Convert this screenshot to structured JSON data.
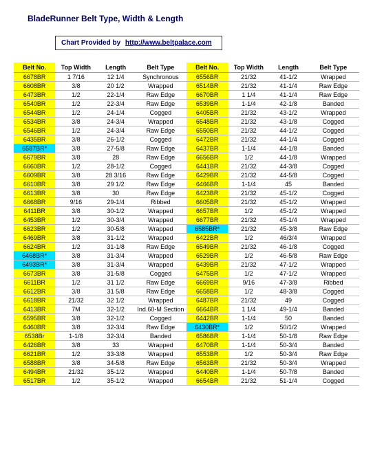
{
  "title": "BladeRunner Belt Type, Width & Length",
  "provided_label": "Chart Provided by",
  "provided_url": "http://www.beltpalace.com",
  "headers": {
    "beltno": "Belt No.",
    "topwidth": "Top Width",
    "length": "Length",
    "belttype": "Belt Type"
  },
  "rows": [
    [
      {
        "n": "6678BR",
        "w": "1  7/16",
        "l": "12 1/4",
        "t": "Synchronous"
      },
      {
        "n": "6556BR",
        "w": "21/32",
        "l": "41-1/2",
        "t": "Wrapped"
      }
    ],
    [
      {
        "n": "6608BR",
        "w": "3/8",
        "l": "20 1/2",
        "t": "Wrapped"
      },
      {
        "n": "6514BR",
        "w": "21/32",
        "l": "41-1/4",
        "t": "Raw Edge"
      }
    ],
    [
      {
        "n": "6473BR",
        "w": "1/2",
        "l": "22-1/4",
        "t": "Raw Edge"
      },
      {
        "n": "6670BR",
        "w": "1  1/4",
        "l": "41-1/4",
        "t": "Raw Edge"
      }
    ],
    [
      {
        "n": "6540BR",
        "w": "1/2",
        "l": "22-3/4",
        "t": "Raw Edge"
      },
      {
        "n": "6539BR",
        "w": "1-1/4",
        "l": "42-1/8",
        "t": "Banded"
      }
    ],
    [
      {
        "n": "6544BR",
        "w": "1/2",
        "l": "24-1/4",
        "t": "Cogged"
      },
      {
        "n": "6405BR",
        "w": "21/32",
        "l": "43-1/2",
        "t": "Wrapped"
      }
    ],
    [
      {
        "n": "6534BR",
        "w": "3/8",
        "l": "24-3/4",
        "t": "Wrapped"
      },
      {
        "n": "6548BR",
        "w": "21/32",
        "l": "43-1/8",
        "t": "Cogged"
      }
    ],
    [
      {
        "n": "6546BR",
        "w": "1/2",
        "l": "24-3/4",
        "t": "Raw Edge"
      },
      {
        "n": "6550BR",
        "w": "21/32",
        "l": "44-1/2",
        "t": "Cogged"
      }
    ],
    [
      {
        "n": "6435BR",
        "w": "3/8",
        "l": "26-1/2",
        "t": "Cogged"
      },
      {
        "n": "6472BR",
        "w": "21/32",
        "l": "44-1/4",
        "t": "Cogged"
      }
    ],
    [
      {
        "n": "6587BR*",
        "s": true,
        "w": "3/8",
        "l": "27-5/8",
        "t": "Raw Edge"
      },
      {
        "n": "6437BR",
        "w": "1-1/4",
        "l": "44-1/8",
        "t": "Banded"
      }
    ],
    [
      {
        "n": "6679BR",
        "w": "3/8",
        "l": "28",
        "t": "Raw Edge"
      },
      {
        "n": "6656BR",
        "w": "1/2",
        "l": "44-1/8",
        "t": "Wrapped"
      }
    ],
    [
      {
        "n": "6660BR",
        "w": "1/2",
        "l": "28-1/2",
        "t": "Cogged"
      },
      {
        "n": "6441BR",
        "w": "21/32",
        "l": "44-3/8",
        "t": "Cogged"
      }
    ],
    [
      {
        "n": "6609BR",
        "w": "3/8",
        "l": "28  3/16",
        "t": "Raw Edge"
      },
      {
        "n": "6429BR",
        "w": "21/32",
        "l": "44-5/8",
        "t": "Cogged"
      }
    ],
    [
      {
        "n": "6610BR",
        "w": "3/8",
        "l": "29 1/2",
        "t": "Raw Edge"
      },
      {
        "n": "6466BR",
        "w": "1-1/4",
        "l": "45",
        "t": "Banded"
      }
    ],
    [
      {
        "n": "6613BR",
        "w": "3/8",
        "l": "30",
        "t": "Raw Edge"
      },
      {
        "n": "6423BR",
        "w": "21/32",
        "l": "45-1/2",
        "t": "Cogged"
      }
    ],
    [
      {
        "n": "6668BR",
        "w": "9/16",
        "l": "29-1/4",
        "t": "Ribbed"
      },
      {
        "n": "6605BR",
        "w": "21/32",
        "l": "45-1/2",
        "t": "Wrapped"
      }
    ],
    [
      {
        "n": "6411BR",
        "w": "3/8",
        "l": "30-1/2",
        "t": "Wrapped"
      },
      {
        "n": "6657BR",
        "w": "1/2",
        "l": "45-1/2",
        "t": "Wrapped"
      }
    ],
    [
      {
        "n": "6453BR",
        "w": "1/2",
        "l": "30-3/4",
        "t": "Wrapped"
      },
      {
        "n": "6677BR",
        "w": "21/32",
        "l": "45-1/4",
        "t": "Wrapped"
      }
    ],
    [
      {
        "n": "6623BR",
        "w": "1/2",
        "l": "30-5/8",
        "t": "Wrapped"
      },
      {
        "n": "6585BR*",
        "s": true,
        "w": "21/32",
        "l": "45-3/8",
        "t": "Raw Edge"
      }
    ],
    [
      {
        "n": "6469BR",
        "w": "3/8",
        "l": "31-1/2",
        "t": "Wrapped"
      },
      {
        "n": "6422BR",
        "w": "1/2",
        "l": "46/3/4",
        "t": "Wrapped"
      }
    ],
    [
      {
        "n": "6624BR",
        "w": "1/2",
        "l": "31-1/8",
        "t": "Raw Edge"
      },
      {
        "n": "6549BR",
        "w": "21/32",
        "l": "46-1/8",
        "t": "Cogged"
      }
    ],
    [
      {
        "n": "6468BR*",
        "s": true,
        "w": "3/8",
        "l": "31-3/4",
        "t": "Wrapped"
      },
      {
        "n": "6529BR",
        "w": "1/2",
        "l": "46-5/8",
        "t": "Raw Edge"
      }
    ],
    [
      {
        "n": "6493BR*",
        "s": true,
        "w": "3/8",
        "l": "31-3/4",
        "t": "Wrapped"
      },
      {
        "n": "6439BR",
        "w": "21/32",
        "l": "47-1/2",
        "t": "Wrapped"
      }
    ],
    [
      {
        "n": "6673BR",
        "w": "3/8",
        "l": "31-5/8",
        "t": "Cogged"
      },
      {
        "n": "6475BR",
        "w": "1/2",
        "l": "47-1/2",
        "t": "Wrapped"
      }
    ],
    [
      {
        "n": "6611BR",
        "w": "1/2",
        "l": "31 1/2",
        "t": "Raw Edge"
      },
      {
        "n": "6669BR",
        "w": "9/16",
        "l": "47-3/8",
        "t": "Ribbed"
      }
    ],
    [
      {
        "n": "6612BR",
        "w": "3/8",
        "l": "31 5/8",
        "t": "Raw Edge"
      },
      {
        "n": "6658BR",
        "w": "1/2",
        "l": "48-3/8",
        "t": "Cogged"
      }
    ],
    [
      {
        "n": "6618BR",
        "w": "21/32",
        "l": "32 1/2",
        "t": "Wrapped"
      },
      {
        "n": "6487BR",
        "w": "21/32",
        "l": "49",
        "t": "Cogged"
      }
    ],
    [
      {
        "n": "6413BR",
        "w": "7M",
        "l": "32-1/2",
        "t": "Ind.60-M Section"
      },
      {
        "n": "6664BR",
        "w": "1 1/4",
        "l": "49-1/4",
        "t": "Banded"
      }
    ],
    [
      {
        "n": "6595BR",
        "w": "3/8",
        "l": "32-1/2",
        "t": "Cogged"
      },
      {
        "n": "6442BR",
        "w": "1-1/4",
        "l": "50",
        "t": "Banded"
      }
    ],
    [
      {
        "n": "6460BR",
        "w": "3/8",
        "l": "32-3/4",
        "t": "Raw Edge"
      },
      {
        "n": "6430BR*",
        "s": true,
        "w": "1/2",
        "l": "50/1/2",
        "t": "Wrapped"
      }
    ],
    [
      {
        "n": "6538Br",
        "w": "1-1/8",
        "l": "32-3/4",
        "t": "Banded"
      },
      {
        "n": "6586BR",
        "w": "1-1/4",
        "l": "50-1/8",
        "t": "Raw Edge"
      }
    ],
    [
      {
        "n": "6426BR",
        "w": "3/8",
        "l": "33",
        "t": "Wrapped"
      },
      {
        "n": "6470BR",
        "w": "1-1/4",
        "l": "50-3/4",
        "t": "Banded"
      }
    ],
    [
      {
        "n": "6621BR",
        "w": "1/2",
        "l": "33-3/8",
        "t": "Wrapped"
      },
      {
        "n": "6553BR",
        "w": "1/2",
        "l": "50-3/4",
        "t": "Raw Edge"
      }
    ],
    [
      {
        "n": "6588BR",
        "w": "3/8",
        "l": "34-5/8",
        "t": "Raw Edge"
      },
      {
        "n": "6563BR",
        "w": "21/32",
        "l": "50-3/4",
        "t": "Wrapped"
      }
    ],
    [
      {
        "n": "6494BR",
        "w": "21/32",
        "l": "35-1/2",
        "t": "Wrapped"
      },
      {
        "n": "6440BR",
        "w": "1-1/4",
        "l": "50-7/8",
        "t": "Banded"
      }
    ],
    [
      {
        "n": "6517BR",
        "w": "1/2",
        "l": "35-1/2",
        "t": "Wrapped"
      },
      {
        "n": "6654BR",
        "w": "21/32",
        "l": "51-1/4",
        "t": "Cogged"
      }
    ]
  ]
}
